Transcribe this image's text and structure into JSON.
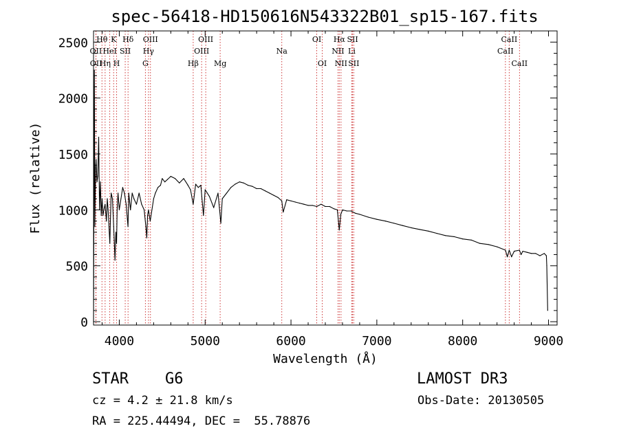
{
  "chart_data": {
    "type": "line",
    "title": "spec-56418-HD150616N543322B01_sp15-167.fits",
    "xlabel": "Wavelength (Å)",
    "ylabel": "Flux (relative)",
    "xlim": [
      3700,
      9100
    ],
    "ylim": [
      -30,
      2600
    ],
    "xticks": [
      4000,
      5000,
      6000,
      7000,
      8000,
      9000
    ],
    "yticks": [
      0,
      500,
      1000,
      1500,
      2000,
      2500
    ],
    "series": [
      {
        "name": "flux",
        "color": "#000000",
        "x": [
          3700,
          3710,
          3715,
          3720,
          3725,
          3730,
          3740,
          3750,
          3760,
          3770,
          3780,
          3790,
          3800,
          3810,
          3820,
          3835,
          3850,
          3860,
          3870,
          3890,
          3905,
          3920,
          3935,
          3950,
          3960,
          3968,
          3975,
          3985,
          4000,
          4020,
          4040,
          4060,
          4080,
          4101,
          4110,
          4130,
          4150,
          4170,
          4200,
          4230,
          4260,
          4290,
          4310,
          4320,
          4330,
          4340,
          4360,
          4380,
          4400,
          4420,
          4450,
          4480,
          4500,
          4530,
          4560,
          4600,
          4650,
          4700,
          4750,
          4800,
          4830,
          4861,
          4890,
          4920,
          4950,
          4980,
          5000,
          5050,
          5100,
          5150,
          5183,
          5200,
          5250,
          5300,
          5350,
          5400,
          5450,
          5500,
          5550,
          5600,
          5650,
          5700,
          5750,
          5800,
          5850,
          5893,
          5910,
          5950,
          6000,
          6050,
          6100,
          6150,
          6200,
          6250,
          6300,
          6350,
          6400,
          6450,
          6500,
          6540,
          6563,
          6580,
          6600,
          6650,
          6700,
          6750,
          6800,
          6900,
          7000,
          7100,
          7200,
          7300,
          7400,
          7500,
          7600,
          7700,
          7800,
          7900,
          8000,
          8100,
          8200,
          8300,
          8400,
          8498,
          8520,
          8542,
          8570,
          8600,
          8662,
          8680,
          8700,
          8750,
          8800,
          8850,
          8900,
          8950,
          8975,
          8980,
          8990
        ],
        "values": [
          0,
          2250,
          850,
          1150,
          1380,
          1450,
          1250,
          1300,
          1650,
          1000,
          1250,
          950,
          1100,
          950,
          1000,
          1050,
          900,
          1100,
          1000,
          700,
          1150,
          1100,
          850,
          550,
          800,
          700,
          1000,
          1150,
          1000,
          1100,
          1200,
          1150,
          1050,
          850,
          1150,
          1000,
          1150,
          1100,
          1050,
          1150,
          1050,
          1000,
          850,
          750,
          950,
          1000,
          900,
          1000,
          1100,
          1150,
          1200,
          1220,
          1280,
          1250,
          1270,
          1300,
          1280,
          1240,
          1280,
          1220,
          1180,
          1050,
          1230,
          1200,
          1220,
          950,
          1180,
          1120,
          1020,
          1150,
          880,
          1100,
          1150,
          1200,
          1230,
          1250,
          1240,
          1220,
          1210,
          1190,
          1190,
          1170,
          1150,
          1130,
          1110,
          1080,
          980,
          1090,
          1080,
          1070,
          1060,
          1050,
          1040,
          1040,
          1030,
          1050,
          1030,
          1030,
          1010,
          1000,
          820,
          960,
          1000,
          990,
          990,
          970,
          960,
          935,
          915,
          900,
          880,
          860,
          840,
          825,
          810,
          790,
          770,
          760,
          740,
          730,
          700,
          690,
          670,
          640,
          580,
          640,
          580,
          630,
          640,
          600,
          630,
          620,
          610,
          610,
          590,
          610,
          590,
          500,
          100
        ]
      }
    ],
    "lines": [
      {
        "label": "OII",
        "x": 3727,
        "row": 1
      },
      {
        "label": "OII",
        "x": 3729,
        "row": 2
      },
      {
        "label": "Hθ",
        "x": 3798,
        "row": 0
      },
      {
        "label": "Hη",
        "x": 3835,
        "row": 2
      },
      {
        "label": "HeI",
        "x": 3889,
        "row": 1
      },
      {
        "label": "K",
        "x": 3934,
        "row": 0
      },
      {
        "label": "H",
        "x": 3969,
        "row": 2
      },
      {
        "label": "SII",
        "x": 4069,
        "row": 1
      },
      {
        "label": "Hδ",
        "x": 4102,
        "row": 0
      },
      {
        "label": "G",
        "x": 4304,
        "row": 2
      },
      {
        "label": "Hγ",
        "x": 4340,
        "row": 1
      },
      {
        "label": "OIII",
        "x": 4363,
        "row": 0
      },
      {
        "label": "Hβ",
        "x": 4861,
        "row": 2
      },
      {
        "label": "OIII",
        "x": 4959,
        "row": 1
      },
      {
        "label": "OIII",
        "x": 5007,
        "row": 0
      },
      {
        "label": "Mg",
        "x": 5175,
        "row": 2
      },
      {
        "label": "Na",
        "x": 5893,
        "row": 1
      },
      {
        "label": "OI",
        "x": 6300,
        "row": 0
      },
      {
        "label": "OI",
        "x": 6364,
        "row": 2
      },
      {
        "label": "NII",
        "x": 6548,
        "row": 1
      },
      {
        "label": "Hα",
        "x": 6563,
        "row": 0
      },
      {
        "label": "NII",
        "x": 6583,
        "row": 2
      },
      {
        "label": "Li",
        "x": 6708,
        "row": 1
      },
      {
        "label": "SII",
        "x": 6717,
        "row": 0
      },
      {
        "label": "SII",
        "x": 6731,
        "row": 2
      },
      {
        "label": "CaII",
        "x": 8498,
        "row": 1
      },
      {
        "label": "CaII",
        "x": 8542,
        "row": 0
      },
      {
        "label": "CaII",
        "x": 8662,
        "row": 2
      }
    ],
    "line_color": "#c81e1e"
  },
  "info": {
    "class_line": "STAR    G6",
    "survey": "LAMOST DR3",
    "cz_line": "cz = 4.2 ± 21.8 km/s",
    "obs_date": "Obs-Date: 20130505",
    "coords": "RA = 225.44494, DEC =  55.78876"
  }
}
